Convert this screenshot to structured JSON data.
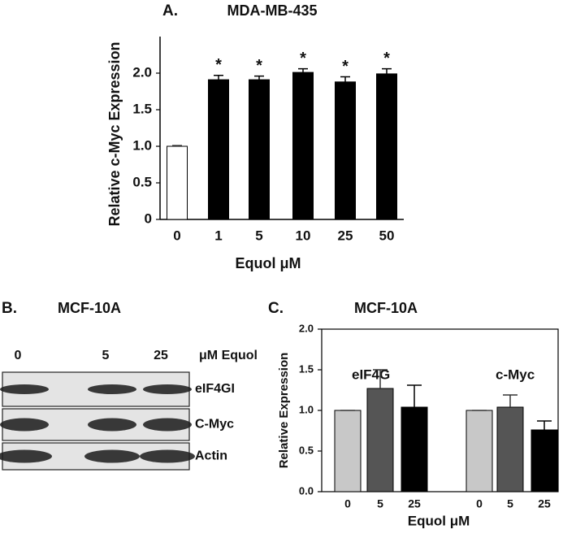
{
  "chart_data": [
    {
      "type": "bar",
      "label": "A.",
      "title": "MDA-MB-435",
      "ylabel": "Relative c-Myc Expression",
      "xlabel": "Equol μM",
      "categories": [
        "0",
        "1",
        "5",
        "10",
        "25",
        "50"
      ],
      "values": [
        1.0,
        1.91,
        1.91,
        2.01,
        1.88,
        1.99
      ],
      "errors": [
        0.01,
        0.06,
        0.05,
        0.05,
        0.07,
        0.07
      ],
      "colors": [
        "#ffffff",
        "#000000",
        "#000000",
        "#000000",
        "#000000",
        "#000000"
      ],
      "annotations": [
        null,
        "*",
        "*",
        "*",
        "*",
        "*"
      ],
      "ylim": [
        0,
        2.5
      ],
      "yticks": [
        0,
        0.5,
        {
          "value": 1,
          "label": "1.0"
        },
        1.5,
        {
          "value": 2,
          "label": "2.0"
        }
      ]
    },
    {
      "type": "grouped-bar",
      "label": "C.",
      "title": "MCF-10A",
      "ylabel": "Relative Expression",
      "xlabel": "Equol μM",
      "colors": [
        "#c8c8c8",
        "#555555",
        "#000000"
      ],
      "groups": [
        {
          "name": "eIF4G",
          "categories": [
            "0",
            "5",
            "25"
          ],
          "values": [
            1.0,
            1.27,
            1.04
          ],
          "errors": [
            0,
            0.23,
            0.27
          ]
        },
        {
          "name": "c-Myc",
          "categories": [
            "0",
            "5",
            "25"
          ],
          "values": [
            1.0,
            1.04,
            0.76
          ],
          "errors": [
            0,
            0.15,
            0.11
          ]
        }
      ],
      "ylim": [
        0,
        2
      ],
      "yticks": [
        {
          "value": 0,
          "label": "0.0"
        },
        0.5,
        {
          "value": 1,
          "label": "1.0"
        },
        1.5,
        {
          "value": 2,
          "label": "2.0"
        }
      ]
    }
  ],
  "blot": {
    "label": "B.",
    "title": "MCF-10A",
    "lanes": [
      "0",
      "5",
      "25"
    ],
    "lane_unit": "μM Equol",
    "rows": [
      "eIF4GI",
      "C-Myc",
      "Actin"
    ]
  }
}
